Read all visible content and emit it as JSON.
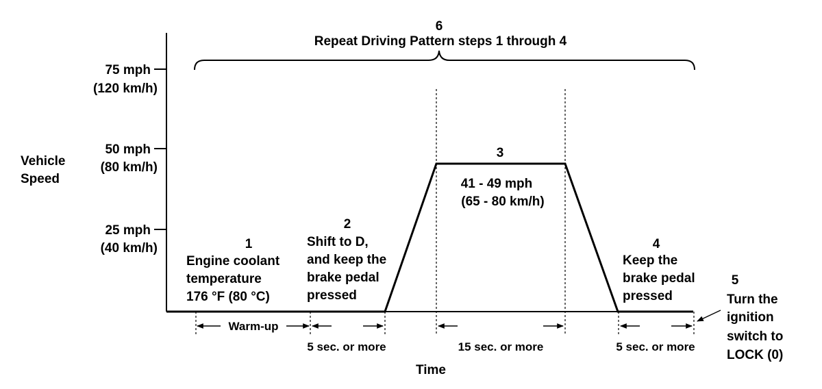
{
  "y_axis": {
    "title_line1": "Vehicle",
    "title_line2": "Speed",
    "ticks": [
      {
        "mph": "75 mph",
        "kmh": "(120 km/h)"
      },
      {
        "mph": "50 mph",
        "kmh": "(80 km/h)"
      },
      {
        "mph": "25 mph",
        "kmh": "(40 km/h)"
      }
    ]
  },
  "x_axis": {
    "title": "Time"
  },
  "steps": {
    "s1": {
      "num": "1",
      "lines": [
        "Engine coolant",
        "temperature",
        "176 °F (80 °C)"
      ]
    },
    "s2": {
      "num": "2",
      "lines": [
        "Shift to D,",
        "and keep the",
        "brake pedal",
        "pressed"
      ]
    },
    "s3": {
      "num": "3",
      "lines": [
        "41 - 49 mph",
        "(65 - 80 km/h)"
      ]
    },
    "s4": {
      "num": "4",
      "lines": [
        "Keep the",
        "brake pedal",
        "pressed"
      ]
    },
    "s5": {
      "num": "5",
      "lines": [
        "Turn the",
        "ignition",
        "switch to",
        "LOCK (0)"
      ]
    },
    "s6": {
      "num": "6",
      "lines": [
        "Repeat Driving Pattern steps 1 through 4"
      ]
    }
  },
  "durations": {
    "warmup": "Warm-up",
    "d2": "5 sec. or  more",
    "d3": "15 sec. or  more",
    "d4": "5 sec. or  more"
  }
}
